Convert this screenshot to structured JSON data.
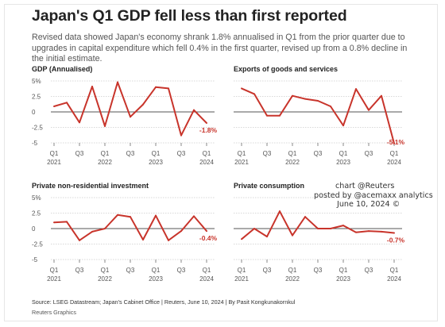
{
  "header": {
    "title": "Japan's Q1 GDP fell less than first reported",
    "subtitle": "Revised data showed Japan's economy shrank 1.8% annualised in Q1 from the prior quarter due to upgrades in capital expenditure which fell 0.4% in the first quarter, revised up from a 0.8% decline in the initial estimate."
  },
  "credit": {
    "line1": "chart @Reuters",
    "line2": "posted by @acemaxx analytics",
    "line3": "June 10, 2024 ©"
  },
  "footer": {
    "source": "Source: LSEG Datastream; Japan's Cabinet Office | Reuters, June 10, 2024 | By Pasit Kongkunakornkul",
    "graphics": "Reuters Graphics"
  },
  "colors": {
    "line": "#c8342b",
    "zero": "#555555",
    "grid": "#cccccc",
    "tick": "#555555"
  },
  "chart_data": [
    {
      "type": "line",
      "title": "GDP (Annualised)",
      "x": [
        "Q1 2021",
        "Q2 2021",
        "Q3 2021",
        "Q4 2021",
        "Q1 2022",
        "Q2 2022",
        "Q3 2022",
        "Q4 2022",
        "Q1 2023",
        "Q2 2023",
        "Q3 2023",
        "Q4 2023",
        "Q1 2024"
      ],
      "values": [
        0.9,
        1.5,
        -1.7,
        4.1,
        -2.3,
        4.8,
        -0.8,
        1.2,
        4.0,
        3.8,
        -3.8,
        0.3,
        -1.8
      ],
      "end_label": "-1.8%",
      "yticks": [
        5,
        2.5,
        0,
        -2.5,
        -5
      ],
      "ytick_labels": [
        "5%",
        "2.5",
        "0",
        "-2.5",
        "-5"
      ],
      "ylim": [
        -5,
        5
      ],
      "xtick_labels": [
        [
          "Q1",
          "2021"
        ],
        [
          "Q3",
          ""
        ],
        [
          "Q1",
          "2022"
        ],
        [
          "Q3",
          ""
        ],
        [
          "Q1",
          "2023"
        ],
        [
          "Q3",
          ""
        ],
        [
          "Q1",
          "2024"
        ]
      ],
      "show_yaxis": true,
      "grid": true
    },
    {
      "type": "line",
      "title": "Exports of goods and services",
      "x": [
        "Q1 2021",
        "Q2 2021",
        "Q3 2021",
        "Q4 2021",
        "Q1 2022",
        "Q2 2022",
        "Q3 2022",
        "Q4 2022",
        "Q1 2023",
        "Q2 2023",
        "Q3 2023",
        "Q4 2023",
        "Q1 2024"
      ],
      "values": [
        3.8,
        2.9,
        -0.6,
        -0.6,
        2.6,
        2.1,
        1.8,
        0.9,
        -2.2,
        3.7,
        0.3,
        2.6,
        -5.1
      ],
      "end_label": "-5.1%",
      "yticks": [
        5,
        2.5,
        0,
        -2.5,
        -5
      ],
      "ytick_labels": [
        "5%",
        "2.5",
        "0",
        "-2.5",
        "-5"
      ],
      "ylim": [
        -5,
        5
      ],
      "xtick_labels": [
        [
          "Q1",
          "2021"
        ],
        [
          "Q3",
          ""
        ],
        [
          "Q1",
          "2022"
        ],
        [
          "Q3",
          ""
        ],
        [
          "Q1",
          "2023"
        ],
        [
          "Q3",
          ""
        ],
        [
          "Q1",
          "2024"
        ]
      ],
      "show_yaxis": false,
      "grid": true
    },
    {
      "type": "line",
      "title": "Private non-residential investment",
      "x": [
        "Q1 2021",
        "Q2 2021",
        "Q3 2021",
        "Q4 2021",
        "Q1 2022",
        "Q2 2022",
        "Q3 2022",
        "Q4 2022",
        "Q1 2023",
        "Q2 2023",
        "Q3 2023",
        "Q4 2023",
        "Q1 2024"
      ],
      "values": [
        1.0,
        1.1,
        -1.9,
        -0.5,
        0.0,
        2.2,
        1.9,
        -1.8,
        2.1,
        -1.9,
        -0.4,
        2.0,
        -0.4
      ],
      "end_label": "-0.4%",
      "yticks": [
        5,
        2.5,
        0,
        -2.5,
        -5
      ],
      "ytick_labels": [
        "5%",
        "2.5",
        "0",
        "-2.5",
        "-5"
      ],
      "ylim": [
        -5,
        5
      ],
      "xtick_labels": [
        [
          "Q1",
          "2021"
        ],
        [
          "Q3",
          ""
        ],
        [
          "Q1",
          "2022"
        ],
        [
          "Q3",
          ""
        ],
        [
          "Q1",
          "2023"
        ],
        [
          "Q3",
          ""
        ],
        [
          "Q1",
          "2024"
        ]
      ],
      "show_yaxis": true,
      "grid": true
    },
    {
      "type": "line",
      "title": "Private consumption",
      "x": [
        "Q1 2021",
        "Q2 2021",
        "Q3 2021",
        "Q4 2021",
        "Q1 2022",
        "Q2 2022",
        "Q3 2022",
        "Q4 2022",
        "Q1 2023",
        "Q2 2023",
        "Q3 2023",
        "Q4 2023",
        "Q1 2024"
      ],
      "values": [
        -1.7,
        0.0,
        -1.3,
        2.8,
        -1.1,
        1.9,
        0.0,
        0.0,
        0.5,
        -0.6,
        -0.4,
        -0.5,
        -0.7
      ],
      "end_label": "-0.7%",
      "yticks": [
        5,
        2.5,
        0,
        -2.5,
        -5
      ],
      "ytick_labels": [
        "5%",
        "2.5",
        "0",
        "-2.5",
        "-5"
      ],
      "ylim": [
        -5,
        5
      ],
      "xtick_labels": [
        [
          "Q1",
          "2021"
        ],
        [
          "Q3",
          ""
        ],
        [
          "Q1",
          "2022"
        ],
        [
          "Q3",
          ""
        ],
        [
          "Q1",
          "2023"
        ],
        [
          "Q3",
          ""
        ],
        [
          "Q1",
          "2024"
        ]
      ],
      "show_yaxis": false,
      "grid": true
    }
  ]
}
